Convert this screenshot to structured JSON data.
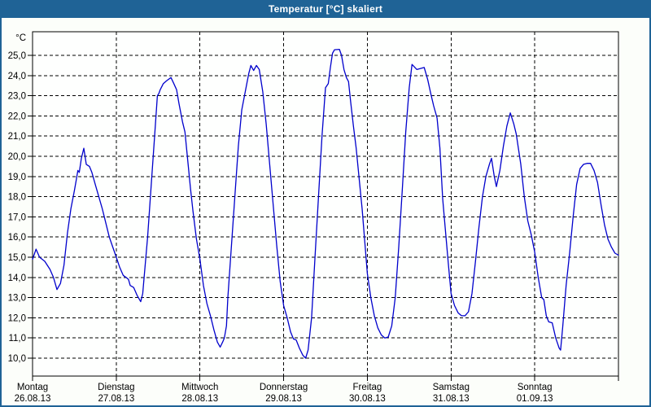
{
  "window": {
    "title": "Temperatur [°C] skaliert",
    "title_bar_bg": "#1F6396",
    "title_text_color": "#FFFFFF",
    "border_color": "#1F6396",
    "background": "#FCFEFA"
  },
  "chart_data": {
    "type": "line",
    "title": "Temperatur [°C] skaliert",
    "unit_label": "°C",
    "line_color": "#0000CC",
    "grid_color": "#000000",
    "plot_bg": "#FEFFFE",
    "grid": true,
    "legend": "none",
    "ylim": [
      10,
      25
    ],
    "y_tick_step": 1.0,
    "y_ticks": [
      25,
      24,
      23,
      22,
      21,
      20,
      19,
      18,
      17,
      16,
      15,
      14,
      13,
      12,
      11,
      10
    ],
    "y_tick_labels": [
      "25,0",
      "24,0",
      "23,0",
      "22,0",
      "21,0",
      "20,0",
      "19,0",
      "18,0",
      "17,0",
      "16,0",
      "15,0",
      "14,0",
      "13,0",
      "12,0",
      "11,0",
      "10,0"
    ],
    "x_hours_range": [
      0,
      168
    ],
    "x_axis": {
      "days": [
        {
          "name": "Montag",
          "date": "26.08.13"
        },
        {
          "name": "Dienstag",
          "date": "27.08.13"
        },
        {
          "name": "Mittwoch",
          "date": "28.08.13"
        },
        {
          "name": "Donnerstag",
          "date": "29.08.13"
        },
        {
          "name": "Freitag",
          "date": "30.08.13"
        },
        {
          "name": "Samstag",
          "date": "31.08.13"
        },
        {
          "name": "Sonntag",
          "date": "01.09.13"
        }
      ]
    },
    "series": [
      {
        "name": "Temperatur",
        "points": [
          [
            0,
            14.9
          ],
          [
            1,
            15.4
          ],
          [
            2,
            15.0
          ],
          [
            3.5,
            14.8
          ],
          [
            5,
            14.4
          ],
          [
            6,
            14.0
          ],
          [
            7,
            13.4
          ],
          [
            8,
            13.7
          ],
          [
            9,
            14.6
          ],
          [
            10,
            16.2
          ],
          [
            11,
            17.4
          ],
          [
            12,
            18.3
          ],
          [
            12.5,
            18.8
          ],
          [
            13,
            19.3
          ],
          [
            13.4,
            19.2
          ],
          [
            14,
            19.9
          ],
          [
            14.7,
            20.4
          ],
          [
            15.4,
            19.6
          ],
          [
            16.3,
            19.5
          ],
          [
            17,
            19.2
          ],
          [
            18,
            18.6
          ],
          [
            19,
            18.0
          ],
          [
            20,
            17.4
          ],
          [
            21,
            16.7
          ],
          [
            22,
            16.0
          ],
          [
            23,
            15.5
          ],
          [
            24,
            15.0
          ],
          [
            25,
            14.5
          ],
          [
            26,
            14.1
          ],
          [
            26.8,
            14.0
          ],
          [
            27.5,
            13.9
          ],
          [
            28,
            13.6
          ],
          [
            29,
            13.5
          ],
          [
            30,
            13.1
          ],
          [
            31,
            12.8
          ],
          [
            31.6,
            13.2
          ],
          [
            32,
            14.0
          ],
          [
            33,
            16.0
          ],
          [
            34,
            18.5
          ],
          [
            35,
            21.0
          ],
          [
            35.8,
            23.0
          ],
          [
            36.2,
            23.1
          ],
          [
            36.6,
            23.3
          ],
          [
            37.5,
            23.6
          ],
          [
            38.5,
            23.75
          ],
          [
            39.7,
            23.9
          ],
          [
            40.5,
            23.6
          ],
          [
            41.3,
            23.3
          ],
          [
            42,
            22.6
          ],
          [
            43,
            21.7
          ],
          [
            43.7,
            21.2
          ],
          [
            44.5,
            19.8
          ],
          [
            45.3,
            18.4
          ],
          [
            46,
            17.3
          ],
          [
            47,
            15.9
          ],
          [
            48,
            14.9
          ],
          [
            49,
            13.6
          ],
          [
            50,
            12.7
          ],
          [
            51,
            12.1
          ],
          [
            52,
            11.4
          ],
          [
            53,
            10.8
          ],
          [
            53.8,
            10.55
          ],
          [
            54.5,
            10.8
          ],
          [
            55,
            11.0
          ],
          [
            55.6,
            11.6
          ],
          [
            56,
            13.0
          ],
          [
            57,
            15.5
          ],
          [
            58,
            18.0
          ],
          [
            59,
            20.5
          ],
          [
            60,
            22.3
          ],
          [
            61,
            23.2
          ],
          [
            62,
            24.1
          ],
          [
            62.6,
            24.5
          ],
          [
            63.4,
            24.25
          ],
          [
            64.2,
            24.5
          ],
          [
            65,
            24.3
          ],
          [
            66,
            23.2
          ],
          [
            67,
            21.6
          ],
          [
            68,
            19.6
          ],
          [
            69,
            17.6
          ],
          [
            70,
            15.6
          ],
          [
            71,
            13.8
          ],
          [
            72,
            12.6
          ],
          [
            73,
            12.0
          ],
          [
            74,
            11.3
          ],
          [
            74.8,
            10.95
          ],
          [
            75.6,
            10.9
          ],
          [
            76.5,
            10.5
          ],
          [
            77.5,
            10.15
          ],
          [
            78.3,
            10.0
          ],
          [
            79,
            10.4
          ],
          [
            80,
            12.0
          ],
          [
            81,
            15.0
          ],
          [
            82,
            18.0
          ],
          [
            83,
            21.0
          ],
          [
            84,
            23.4
          ],
          [
            84.8,
            23.6
          ],
          [
            85.4,
            24.4
          ],
          [
            86,
            25.1
          ],
          [
            86.6,
            25.28
          ],
          [
            88,
            25.3
          ],
          [
            88.6,
            25.0
          ],
          [
            89.3,
            24.3
          ],
          [
            90,
            23.9
          ],
          [
            90.6,
            23.7
          ],
          [
            91.2,
            22.7
          ],
          [
            92,
            21.5
          ],
          [
            92.8,
            20.4
          ],
          [
            93.6,
            19.0
          ],
          [
            94.5,
            17.4
          ],
          [
            95.3,
            15.7
          ],
          [
            96,
            14.2
          ],
          [
            97,
            13.0
          ],
          [
            98,
            12.1
          ],
          [
            99,
            11.5
          ],
          [
            100,
            11.15
          ],
          [
            101,
            11.0
          ],
          [
            102,
            11.05
          ],
          [
            103,
            11.6
          ],
          [
            104,
            13.0
          ],
          [
            105,
            15.5
          ],
          [
            106,
            18.3
          ],
          [
            107,
            21.2
          ],
          [
            108,
            23.4
          ],
          [
            108.8,
            24.55
          ],
          [
            110.2,
            24.3
          ],
          [
            112.3,
            24.4
          ],
          [
            113.3,
            23.8
          ],
          [
            114.2,
            23.1
          ],
          [
            115,
            22.5
          ],
          [
            116,
            21.9
          ],
          [
            116.8,
            20.4
          ],
          [
            117.6,
            17.9
          ],
          [
            118.3,
            16.5
          ],
          [
            119.2,
            14.7
          ],
          [
            120,
            13.2
          ],
          [
            121,
            12.6
          ],
          [
            122,
            12.25
          ],
          [
            123,
            12.1
          ],
          [
            124,
            12.1
          ],
          [
            125,
            12.3
          ],
          [
            126,
            13.2
          ],
          [
            127,
            14.8
          ],
          [
            128,
            16.5
          ],
          [
            129,
            18.0
          ],
          [
            130,
            19.0
          ],
          [
            131,
            19.6
          ],
          [
            131.6,
            19.9
          ],
          [
            132.4,
            19.0
          ],
          [
            133,
            18.5
          ],
          [
            134,
            19.3
          ],
          [
            135,
            20.5
          ],
          [
            136,
            21.5
          ],
          [
            137,
            22.15
          ],
          [
            138,
            21.6
          ],
          [
            138.7,
            21.1
          ],
          [
            139.4,
            20.3
          ],
          [
            140,
            19.6
          ],
          [
            141,
            18.0
          ],
          [
            142,
            16.8
          ],
          [
            143,
            16.1
          ],
          [
            144,
            15.25
          ],
          [
            145,
            14.0
          ],
          [
            146,
            13.0
          ],
          [
            146.6,
            12.9
          ],
          [
            147.3,
            12.1
          ],
          [
            148,
            11.8
          ],
          [
            149,
            11.75
          ],
          [
            150,
            11.0
          ],
          [
            151,
            10.5
          ],
          [
            151.4,
            10.4
          ],
          [
            152,
            11.5
          ],
          [
            153,
            13.6
          ],
          [
            154,
            15.2
          ],
          [
            155,
            17.0
          ],
          [
            156,
            18.6
          ],
          [
            157,
            19.4
          ],
          [
            158,
            19.6
          ],
          [
            159,
            19.65
          ],
          [
            160,
            19.65
          ],
          [
            161,
            19.3
          ],
          [
            162,
            18.7
          ],
          [
            163,
            17.6
          ],
          [
            164,
            16.6
          ],
          [
            165,
            15.9
          ],
          [
            166,
            15.5
          ],
          [
            167,
            15.2
          ],
          [
            168,
            15.1
          ]
        ]
      }
    ]
  }
}
